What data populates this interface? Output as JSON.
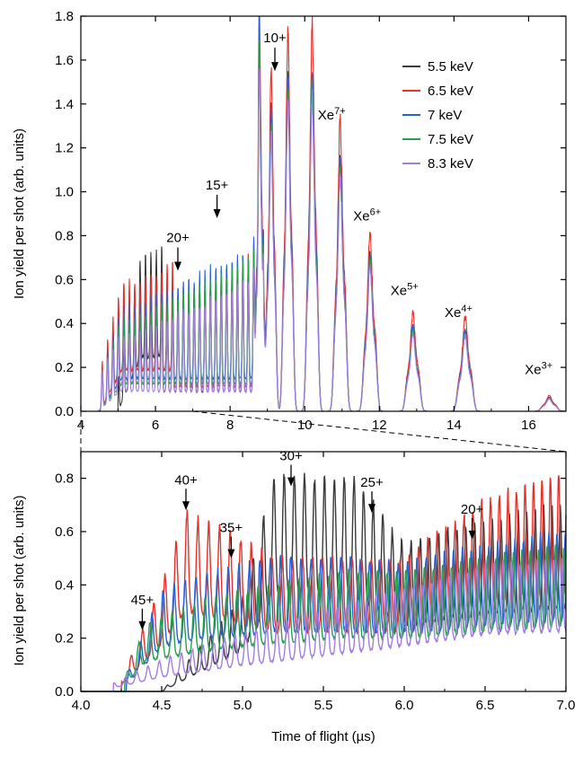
{
  "figure": {
    "xlabel": "Time of flight (µs)",
    "ylabel": "Ion yield per shot (arb. units)"
  },
  "legend": [
    {
      "label": "5.5 keV",
      "color": "#3a3a3a"
    },
    {
      "label": "6.5 keV",
      "color": "#e8302a"
    },
    {
      "label": "7 keV",
      "color": "#2a62d6"
    },
    {
      "label": "7.5 keV",
      "color": "#24a04e"
    },
    {
      "label": "8.3 keV",
      "color": "#a37ee0"
    }
  ],
  "chart_data": [
    {
      "type": "line",
      "panel": "top",
      "xlim": [
        4,
        17
      ],
      "ylim": [
        0,
        1.8
      ],
      "xticks": [
        "4",
        "6",
        "8",
        "10",
        "12",
        "14",
        "16"
      ],
      "yticks": [
        "0.0",
        "0.2",
        "0.4",
        "0.6",
        "0.8",
        "1.0",
        "1.2",
        "1.4",
        "1.6",
        "1.8"
      ],
      "grid": false,
      "legend_position": "top-right",
      "series": [
        {
          "name": "5.5 keV",
          "color": "#3a3a3a",
          "peak_heights": [
            1.52,
            1.46,
            1.37,
            1.3,
            1.16,
            0.76,
            0.36,
            0.35,
            0.05
          ]
        },
        {
          "name": "6.5 keV",
          "color": "#e8302a",
          "peak_heights": [
            1.55,
            1.74,
            1.75,
            1.31,
            0.81,
            0.44,
            0.42,
            0.07
          ]
        },
        {
          "name": "7 keV",
          "color": "#2a62d6",
          "peak_heights": [
            1.43,
            1.52,
            1.52,
            1.2,
            0.74,
            0.42,
            0.37,
            0.06
          ]
        },
        {
          "name": "7.5 keV",
          "color": "#24a04e",
          "peak_heights": [
            1.35,
            1.45,
            1.46,
            1.17,
            0.72,
            0.4,
            0.36,
            0.06
          ]
        },
        {
          "name": "8.3 keV",
          "color": "#a37ee0",
          "peak_heights": [
            1.3,
            1.42,
            1.4,
            1.15,
            0.7,
            0.38,
            0.35,
            0.06
          ]
        }
      ],
      "peaks": [
        {
          "label": "Xe7+",
          "x": 11.0,
          "y": 1.32
        },
        {
          "label": "Xe6+",
          "x": 11.75,
          "y": 0.81
        },
        {
          "label": "Xe5+",
          "x": 12.9,
          "y": 0.44
        },
        {
          "label": "Xe4+",
          "x": 14.3,
          "y": 0.42
        },
        {
          "label": "Xe3+",
          "x": 16.55,
          "y": 0.07
        }
      ],
      "annotations": [
        {
          "text": "10+",
          "x": 9.2,
          "arrow_y": 1.55
        },
        {
          "text": "15+",
          "x": 7.65,
          "arrow_y": 0.88
        },
        {
          "text": "20+",
          "x": 6.6,
          "arrow_y": 0.64
        },
        {
          "text": "Xe",
          "sup": "7+",
          "x": 10.35,
          "y": 1.33
        },
        {
          "text": "Xe",
          "sup": "6+",
          "x": 11.3,
          "y": 0.87
        },
        {
          "text": "Xe",
          "sup": "5+",
          "x": 12.3,
          "y": 0.53
        },
        {
          "text": "Xe",
          "sup": "4+",
          "x": 13.75,
          "y": 0.43
        },
        {
          "text": "Xe",
          "sup": "3+",
          "x": 15.9,
          "y": 0.17
        }
      ]
    },
    {
      "type": "line",
      "panel": "bottom",
      "xlim": [
        4.0,
        7.0
      ],
      "ylim": [
        0,
        0.9
      ],
      "xticks": [
        "4.0",
        "4.5",
        "5.0",
        "5.5",
        "6.0",
        "6.5",
        "7.0"
      ],
      "yticks": [
        "0.0",
        "0.2",
        "0.4",
        "0.6",
        "0.8"
      ],
      "xlabel": "Time of flight (µs)",
      "ylabel": "Ion yield per shot (arb. units)",
      "grid": false,
      "series": [
        {
          "name": "5.5 keV",
          "color": "#3a3a3a",
          "onset": 4.5,
          "envelope": [
            [
              4.5,
              0.0
            ],
            [
              5.0,
              0.35
            ],
            [
              5.2,
              0.82
            ],
            [
              5.5,
              0.8
            ],
            [
              5.7,
              0.8
            ],
            [
              6.0,
              0.55
            ],
            [
              6.5,
              0.65
            ],
            [
              7.0,
              0.7
            ]
          ]
        },
        {
          "name": "6.5 keV",
          "color": "#e8302a",
          "onset": 4.25,
          "envelope": [
            [
              4.25,
              0.05
            ],
            [
              4.5,
              0.4
            ],
            [
              4.65,
              0.67
            ],
            [
              4.9,
              0.6
            ],
            [
              5.2,
              0.5
            ],
            [
              5.6,
              0.5
            ],
            [
              6.0,
              0.5
            ],
            [
              6.5,
              0.72
            ],
            [
              7.0,
              0.82
            ]
          ]
        },
        {
          "name": "7 keV",
          "color": "#2a62d6",
          "onset": 4.28,
          "envelope": [
            [
              4.28,
              0.05
            ],
            [
              4.5,
              0.38
            ],
            [
              4.8,
              0.45
            ],
            [
              5.2,
              0.5
            ],
            [
              5.6,
              0.5
            ],
            [
              6.0,
              0.48
            ],
            [
              6.5,
              0.55
            ],
            [
              7.0,
              0.6
            ]
          ]
        },
        {
          "name": "7.5 keV",
          "color": "#24a04e",
          "onset": 4.27,
          "envelope": [
            [
              4.27,
              0.05
            ],
            [
              4.4,
              0.25
            ],
            [
              4.8,
              0.35
            ],
            [
              5.2,
              0.4
            ],
            [
              5.6,
              0.45
            ],
            [
              6.0,
              0.45
            ],
            [
              6.5,
              0.5
            ],
            [
              7.0,
              0.55
            ]
          ]
        },
        {
          "name": "8.3 keV",
          "color": "#a37ee0",
          "onset": 4.2,
          "envelope": [
            [
              4.2,
              0.03
            ],
            [
              4.5,
              0.12
            ],
            [
              5.0,
              0.22
            ],
            [
              5.5,
              0.3
            ],
            [
              6.0,
              0.38
            ],
            [
              6.5,
              0.48
            ],
            [
              7.0,
              0.5
            ]
          ]
        }
      ],
      "annotations": [
        {
          "text": "45+",
          "x": 4.38,
          "arrow_y": 0.23
        },
        {
          "text": "40+",
          "x": 4.65,
          "arrow_y": 0.68
        },
        {
          "text": "35+",
          "x": 4.93,
          "arrow_y": 0.5
        },
        {
          "text": "30+",
          "x": 5.3,
          "arrow_y": 0.77
        },
        {
          "text": "25+",
          "x": 5.8,
          "arrow_y": 0.67
        },
        {
          "text": "20+",
          "x": 6.42,
          "arrow_y": 0.57
        }
      ]
    }
  ]
}
